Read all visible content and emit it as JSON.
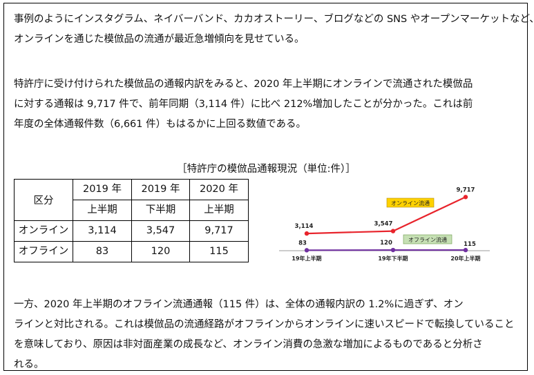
{
  "paragraphs": {
    "p1": [
      "事例のようにインスタグラム、ネイバーバンド、カカオストーリー、ブログなどの SNS やオープンマーケットなど、",
      "オンラインを通じた模倣品の流通が最近急増傾向を見せている。"
    ],
    "p2": [
      "特許庁に受け付けられた模倣品の通報内訳をみると、2020 年上半期にオンラインで流通された模倣品",
      "に対する通報は 9,717 件で、前年同期（3,114 件）に比べ 212%増加したことが分かった。これは前",
      "年度の全体通報件数（6,661 件）もはるかに上回る数値である。"
    ],
    "p3": [
      "一方、2020 年上半期のオフライン流通通報（115 件）は、全体の通報内訳の 1.2%に過ぎず、オン",
      "ラインと対比される。これは模倣品の流通経路がオフラインからオンラインに速いスピードで転換していること",
      "を意味しており、原因は非対面産業の成長など、オンライン消費の急激な増加によるものであると分析さ",
      "れる。"
    ]
  },
  "table": {
    "caption": "［特許庁の模倣品通報現況（単位:件）］",
    "header_label": "区分",
    "columns": [
      {
        "year": "2019 年",
        "half": "上半期"
      },
      {
        "year": "2019 年",
        "half": "下半期"
      },
      {
        "year": "2020 年",
        "half": "上半期"
      }
    ],
    "rows": [
      {
        "label": "オンライン",
        "values": [
          "3,114",
          "3,547",
          "9,717"
        ]
      },
      {
        "label": "オフライン",
        "values": [
          "83",
          "120",
          "115"
        ]
      }
    ]
  },
  "chart_data": {
    "type": "line",
    "categories": [
      "19年上半期",
      "19年下半期",
      "20年上半期"
    ],
    "series": [
      {
        "name": "オンライン流通",
        "values": [
          3114,
          3547,
          9717
        ],
        "labels": [
          "3,114",
          "3,547",
          "9,717"
        ],
        "color": "#e8242c"
      },
      {
        "name": "オフライン流通",
        "values": [
          83,
          120,
          115
        ],
        "labels": [
          "83",
          "120",
          "115"
        ],
        "color": "#7030a0"
      }
    ],
    "ylim": [
      0,
      10000
    ],
    "legend_placement": "annotations near lines",
    "colors": {
      "online_box": "#ffd200",
      "offline_box": "#c6e0b4",
      "axis": "#999999"
    }
  }
}
